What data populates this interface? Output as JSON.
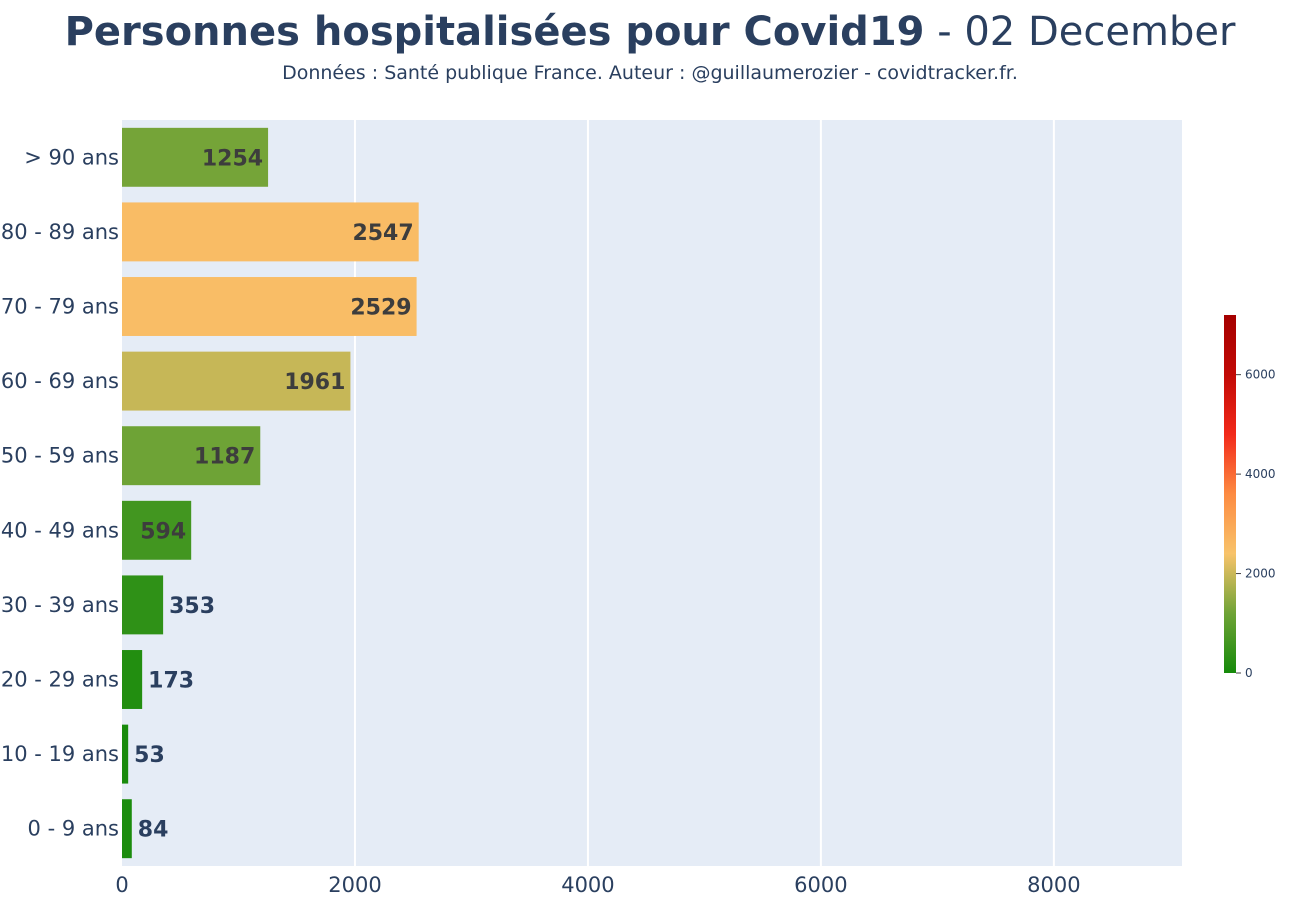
{
  "header": {
    "title_bold": "Personnes hospitalisées pour Covid19",
    "title_rest": " - 02 December",
    "subtitle": "Données : Santé publique France. Auteur : @guillaumerozier - covidtracker.fr."
  },
  "chart_data": {
    "type": "bar",
    "orientation": "horizontal",
    "categories": [
      "> 90 ans",
      "80 - 89 ans",
      "70 - 79 ans",
      "60 - 69 ans",
      "50 - 59 ans",
      "40 - 49 ans",
      "30 - 39 ans",
      "20 - 29 ans",
      "10 - 19 ans",
      "0 - 9 ans"
    ],
    "values": [
      1254,
      2547,
      2529,
      1961,
      1187,
      594,
      353,
      173,
      53,
      84
    ],
    "xlim": [
      0,
      9100
    ],
    "xticks": [
      0,
      2000,
      4000,
      6000,
      8000
    ],
    "grid": true,
    "colorbar": {
      "range": [
        0,
        7200
      ],
      "ticks": [
        0,
        2000,
        4000,
        6000
      ],
      "colors": [
        "#158a0a",
        "#6fa336",
        "#f8c36a",
        "#fd8b42",
        "#f22a1a",
        "#c20a06",
        "#a50000"
      ]
    },
    "colors": {
      "plot_bg": "#e5ecf6",
      "gridline": "#ffffff",
      "text": "#2a3f5f",
      "label_inside": "#3d3d3d",
      "label_outside": "#2a3f5f"
    }
  }
}
